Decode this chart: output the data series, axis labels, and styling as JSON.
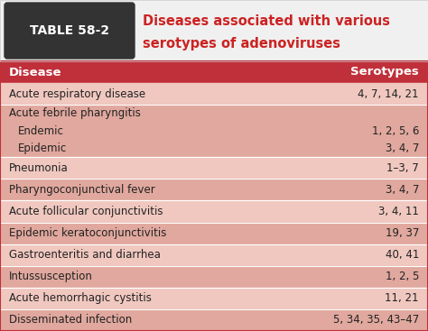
{
  "title_box_label": "TABLE 58-2",
  "title_text_line1": "Diseases associated with various",
  "title_text_line2": "serotypes of adenoviruses",
  "header": [
    "Disease",
    "Serotypes"
  ],
  "row_groups": [
    {
      "lines": [
        [
          "Acute respiratory disease",
          "4, 7, 14, 21"
        ]
      ],
      "dark": false
    },
    {
      "lines": [
        [
          "Acute febrile pharyngitis",
          ""
        ],
        [
          "    Endemic",
          "1, 2, 5, 6"
        ],
        [
          "    Epidemic",
          "3, 4, 7"
        ]
      ],
      "dark": true
    },
    {
      "lines": [
        [
          "Pneumonia",
          "1–3, 7"
        ]
      ],
      "dark": false
    },
    {
      "lines": [
        [
          "Pharyngoconjunctival fever",
          "3, 4, 7"
        ]
      ],
      "dark": true
    },
    {
      "lines": [
        [
          "Acute follicular conjunctivitis",
          "3, 4, 11"
        ]
      ],
      "dark": false
    },
    {
      "lines": [
        [
          "Epidemic keratoconjunctivitis",
          "19, 37"
        ]
      ],
      "dark": true
    },
    {
      "lines": [
        [
          "Gastroenteritis and diarrhea",
          "40, 41"
        ]
      ],
      "dark": false
    },
    {
      "lines": [
        [
          "Intussusception",
          "1, 2, 5"
        ]
      ],
      "dark": true
    },
    {
      "lines": [
        [
          "Acute hemorrhagic cystitis",
          "11, 21"
        ]
      ],
      "dark": false
    },
    {
      "lines": [
        [
          "Disseminated infection",
          "5, 34, 35, 43–47"
        ]
      ],
      "dark": true
    }
  ],
  "colors": {
    "header_bg": "#c0303a",
    "header_text": "#ffffff",
    "row_light": "#f0c8c0",
    "row_dark": "#e0a89e",
    "title_box_bg": "#333333",
    "title_box_text": "#ffffff",
    "title_text_color": "#cc2222",
    "table_border": "#c0303a",
    "title_bg": "#f0f0f0"
  },
  "figsize": [
    4.74,
    3.67
  ],
  "dpi": 100
}
